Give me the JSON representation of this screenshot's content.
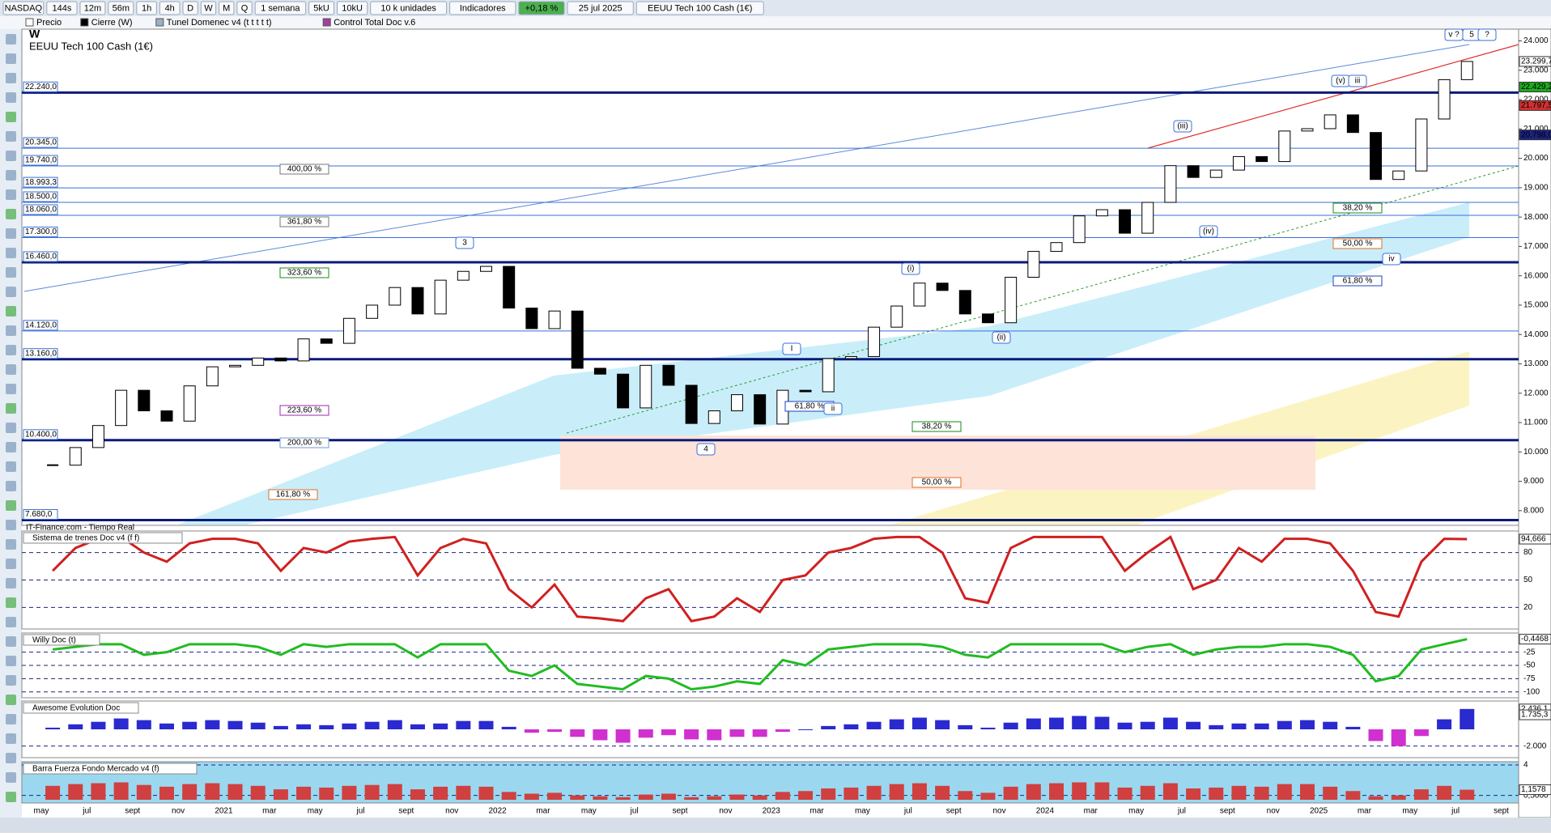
{
  "toolbar": {
    "items": [
      "NASDAQ",
      "144s",
      "12m",
      "56m",
      "1h",
      "4h",
      "D",
      "W",
      "M",
      "Q",
      "1 semana",
      "5kU",
      "10kU",
      "10 k unidades",
      "Indicadores",
      "+0,18 %",
      "25 jul 2025",
      "EEUU Tech 100 Cash (1€)"
    ]
  },
  "legend": [
    "Precio",
    "Cierre (W)",
    "Tunel Domenec v4 (t t t t t)",
    "Control Total Doc v.6"
  ],
  "source": "IT-Finance.com - Tiempo Real",
  "chart_data": [
    {
      "type": "candlestick",
      "title": "W",
      "subtitle": "EEUU Tech 100 Cash (1€)",
      "x_labels": [
        "may",
        "jul",
        "sept",
        "nov",
        "2021",
        "mar",
        "may",
        "jul",
        "sept",
        "nov",
        "2022",
        "mar",
        "may",
        "jul",
        "sept",
        "nov",
        "2023",
        "mar",
        "may",
        "jul",
        "sept",
        "nov",
        "2024",
        "mar",
        "may",
        "jul",
        "sept",
        "nov",
        "2025",
        "mar",
        "may",
        "jul",
        "sept"
      ],
      "closes": [
        9550,
        10150,
        10900,
        12100,
        11400,
        11050,
        12250,
        12900,
        12950,
        13200,
        13100,
        13850,
        13700,
        14550,
        15000,
        15600,
        14700,
        15850,
        16150,
        16320,
        14900,
        14200,
        14800,
        12850,
        12650,
        11500,
        12950,
        12270,
        10970,
        11400,
        11950,
        10950,
        12100,
        12050,
        13180,
        13250,
        14250,
        14970,
        15750,
        15500,
        14700,
        14400,
        15950,
        16830,
        17130,
        18040,
        18250,
        17450,
        18500,
        19750,
        19350,
        19600,
        20060,
        19890,
        20930,
        21010,
        21480,
        20880,
        19280,
        19570,
        21340,
        22680,
        23299.7
      ],
      "ylim": [
        7500,
        24400
      ],
      "yticks": [
        {
          "value": 8000,
          "label": "8.000"
        },
        {
          "value": 9000,
          "label": "9.000"
        },
        {
          "value": 10000,
          "label": "10.000"
        },
        {
          "value": 11000,
          "label": "11.000"
        },
        {
          "value": 12000,
          "label": "12.000"
        },
        {
          "value": 13000,
          "label": "13.000"
        },
        {
          "value": 14000,
          "label": "14.000"
        },
        {
          "value": 15000,
          "label": "15.000"
        },
        {
          "value": 16000,
          "label": "16.000"
        },
        {
          "value": 17000,
          "label": "17.000"
        },
        {
          "value": 18000,
          "label": "18.000"
        },
        {
          "value": 19000,
          "label": "19.000"
        },
        {
          "value": 20000,
          "label": "20.000"
        },
        {
          "value": 21000,
          "label": "21.000"
        },
        {
          "value": 22000,
          "label": "22.000"
        },
        {
          "value": 23000,
          "label": "23.000"
        },
        {
          "value": 24000,
          "label": "24.000"
        }
      ],
      "levels": [
        {
          "value": 22240,
          "label": "22.240,0",
          "heavy": true
        },
        {
          "value": 20345,
          "label": "20.345,0",
          "heavy": false
        },
        {
          "value": 19740,
          "label": "19.740,0",
          "heavy": false
        },
        {
          "value": 18993.3,
          "label": "18.993,3",
          "heavy": false
        },
        {
          "value": 18500,
          "label": "18.500,0",
          "heavy": false
        },
        {
          "value": 18060,
          "label": "18.060,0",
          "heavy": false
        },
        {
          "value": 17300,
          "label": "17.300,0",
          "heavy": false
        },
        {
          "value": 16460,
          "label": "16.460,0",
          "heavy": true
        },
        {
          "value": 14120,
          "label": "14.120,0",
          "heavy": false
        },
        {
          "value": 13160,
          "label": "13.160,0",
          "heavy": true
        },
        {
          "value": 10400,
          "label": "10.400,0",
          "heavy": true
        },
        {
          "value": 7680,
          "label": "7.680,0",
          "heavy": true
        }
      ],
      "price_tags": [
        {
          "value": 23299.7,
          "label": "23.299,7",
          "color": "#ffffff"
        },
        {
          "value": 22429.2,
          "label": "22.429,2",
          "color": "#1faa1f"
        },
        {
          "value": 21797.5,
          "label": "21.797,5",
          "color": "#d03030"
        },
        {
          "value": 20798,
          "label": "20.798,0",
          "color": "#1a237e"
        }
      ],
      "fib_labels": [
        {
          "label": "400,00 %",
          "color": "#777777"
        },
        {
          "label": "361,80 %",
          "color": "#777777"
        },
        {
          "label": "323,60 %",
          "color": "#1a8a1a"
        },
        {
          "label": "223,60 %",
          "color": "#9a2ab0"
        },
        {
          "label": "200,00 %",
          "color": "#7a9ad0"
        },
        {
          "label": "161,80 %",
          "color": "#e07020"
        },
        {
          "label": "38,20 %",
          "color": "#1a8a1a"
        },
        {
          "label": "50,00 %",
          "color": "#e07020"
        },
        {
          "label": "61,80 %",
          "color": "#2040c0"
        },
        {
          "label": "38,20 %",
          "color": "#1a8a1a"
        },
        {
          "label": "50,00 %",
          "color": "#e07020"
        },
        {
          "label": "61,80 %",
          "color": "#2040c0"
        }
      ],
      "wave_labels": [
        "3",
        "4",
        "I",
        "ii",
        "(i)",
        "(ii)",
        "(iii)",
        "(iv)",
        "(v)",
        "iii",
        "iv",
        "v ?",
        "5",
        "?"
      ]
    },
    {
      "type": "line",
      "title": "Sistema de trenes Doc v4 (f f)",
      "values": [
        60,
        85,
        95,
        97,
        80,
        70,
        90,
        95,
        95,
        90,
        60,
        85,
        80,
        92,
        95,
        97,
        55,
        85,
        95,
        90,
        40,
        20,
        45,
        10,
        8,
        5,
        30,
        40,
        5,
        10,
        30,
        15,
        50,
        55,
        80,
        85,
        95,
        97,
        97,
        80,
        30,
        25,
        85,
        97,
        97,
        97,
        97,
        60,
        80,
        97,
        40,
        50,
        85,
        70,
        95,
        95,
        90,
        60,
        15,
        10,
        70,
        95,
        94.666
      ],
      "ylim": [
        0,
        100
      ],
      "yticks": [
        20,
        50,
        80
      ],
      "tag": {
        "value": 94.666,
        "label": "94,666"
      }
    },
    {
      "type": "line",
      "title": "Willy Doc (t)",
      "values": [
        -20,
        -15,
        -10,
        -10,
        -30,
        -25,
        -10,
        -10,
        -10,
        -15,
        -30,
        -10,
        -15,
        -10,
        -10,
        -10,
        -35,
        -10,
        -10,
        -10,
        -60,
        -70,
        -50,
        -85,
        -90,
        -95,
        -70,
        -75,
        -95,
        -90,
        -80,
        -85,
        -40,
        -50,
        -20,
        -15,
        -10,
        -10,
        -10,
        -15,
        -30,
        -35,
        -10,
        -10,
        -10,
        -10,
        -10,
        -25,
        -15,
        -10,
        -30,
        -20,
        -15,
        -15,
        -10,
        -10,
        -15,
        -30,
        -80,
        -70,
        -20,
        -10,
        -0.4468
      ],
      "ylim": [
        -105,
        5
      ],
      "yticks": [
        -25,
        -50,
        -75,
        -100
      ],
      "tag": {
        "value": -0.4468,
        "label": "-0,4468"
      }
    },
    {
      "type": "bar",
      "title": "Awesome Evolution Doc",
      "values": [
        200,
        600,
        900,
        1300,
        1100,
        700,
        900,
        1100,
        1000,
        800,
        400,
        600,
        500,
        700,
        900,
        1100,
        600,
        700,
        1000,
        1000,
        300,
        -400,
        -300,
        -900,
        -1300,
        -1600,
        -1000,
        -700,
        -1200,
        -1300,
        -900,
        -900,
        -300,
        0,
        400,
        600,
        900,
        1200,
        1400,
        1100,
        500,
        200,
        800,
        1300,
        1400,
        1600,
        1500,
        800,
        900,
        1400,
        900,
        500,
        700,
        700,
        1000,
        1100,
        900,
        300,
        -1400,
        -2000,
        -800,
        1200,
        2436.1
      ],
      "ylim": [
        -3000,
        3000
      ],
      "yticks": [
        {
          "value": -2000,
          "label": "-2.000"
        }
      ],
      "tag": {
        "value": 2436.1,
        "label": "2.436,1"
      },
      "tag2": {
        "value": 1735.3,
        "label": "1.735,3"
      }
    },
    {
      "type": "bar",
      "title": "Barra Fuerza Fondo Mercado v4 (f)",
      "values": [
        1.6,
        1.8,
        1.9,
        2.0,
        1.7,
        1.5,
        1.8,
        1.9,
        1.8,
        1.6,
        1.2,
        1.5,
        1.4,
        1.6,
        1.7,
        1.8,
        1.2,
        1.5,
        1.6,
        1.5,
        0.9,
        0.7,
        0.8,
        0.5,
        0.4,
        0.3,
        0.6,
        0.7,
        0.3,
        0.4,
        0.6,
        0.5,
        0.9,
        1.0,
        1.3,
        1.4,
        1.6,
        1.8,
        1.9,
        1.6,
        1.0,
        0.8,
        1.5,
        1.8,
        1.9,
        2.0,
        2.0,
        1.4,
        1.6,
        1.9,
        1.3,
        1.4,
        1.6,
        1.5,
        1.8,
        1.8,
        1.5,
        1.0,
        0.4,
        0.5,
        1.2,
        1.6,
        1.1578
      ],
      "ylim": [
        0,
        4
      ],
      "yticks": [
        4,
        {
          "value": 0.5,
          "label": "0,5000"
        }
      ],
      "tag": {
        "value": 1.1578,
        "label": "1,1578"
      }
    }
  ]
}
